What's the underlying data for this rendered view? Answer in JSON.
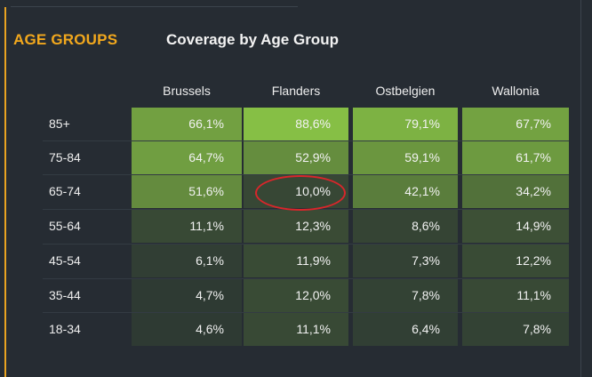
{
  "section": {
    "label": "AGE GROUPS"
  },
  "chart_data": {
    "type": "heatmap",
    "title": "Coverage by Age Group",
    "columns": [
      "Brussels",
      "Flanders",
      "Ostbelgien",
      "Wallonia"
    ],
    "rows": [
      "85+",
      "75-84",
      "65-74",
      "55-64",
      "45-54",
      "35-44",
      "18-34"
    ],
    "values": [
      [
        66.1,
        88.6,
        79.1,
        67.7
      ],
      [
        64.7,
        52.9,
        59.1,
        61.7
      ],
      [
        51.6,
        10.0,
        42.1,
        34.2
      ],
      [
        11.1,
        12.3,
        8.6,
        14.9
      ],
      [
        6.1,
        11.9,
        7.3,
        12.2
      ],
      [
        4.7,
        12.0,
        7.8,
        11.1
      ],
      [
        4.6,
        11.1,
        6.4,
        7.8
      ]
    ],
    "labels": [
      [
        "66,1%",
        "88,6%",
        "79,1%",
        "67,7%"
      ],
      [
        "64,7%",
        "52,9%",
        "59,1%",
        "61,7%"
      ],
      [
        "51,6%",
        "10,0%",
        "42,1%",
        "34,2%"
      ],
      [
        "11,1%",
        "12,3%",
        "8,6%",
        "14,9%"
      ],
      [
        "6,1%",
        "11,9%",
        "7,3%",
        "12,2%"
      ],
      [
        "4,7%",
        "12,0%",
        "7,8%",
        "11,1%"
      ],
      [
        "4,6%",
        "11,1%",
        "6,4%",
        "7,8%"
      ]
    ],
    "color_scale": {
      "low": "#2e3a33",
      "high": "#86bf45"
    },
    "annotation": {
      "type": "ellipse",
      "row": "65-74",
      "column": "Flanders",
      "color": "#d8262b"
    }
  }
}
